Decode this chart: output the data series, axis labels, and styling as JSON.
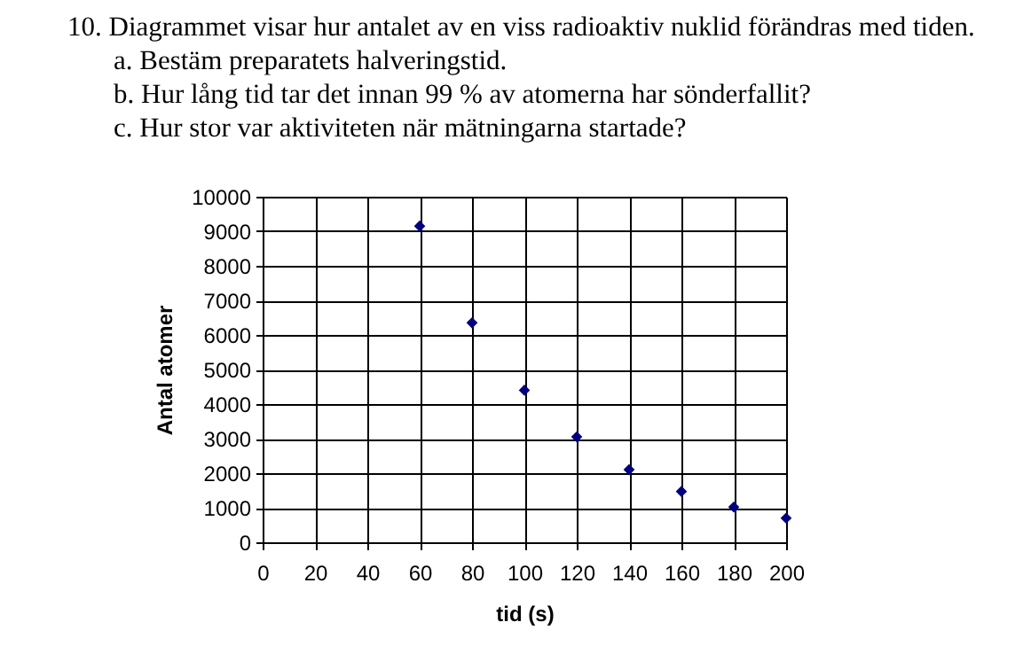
{
  "chart_data": {
    "type": "scatter",
    "title": "10. Diagrammet visar hur antalet av en viss radioaktiv nuklid förändras med tiden.",
    "annotations": [
      "a. Bestäm preparatets halveringstid.",
      "b. Hur lång tid tar det innan 99 % av atomerna har sönderfallit?",
      "c. Hur stor var aktiviteten när mätningarna startade?"
    ],
    "xlabel": "tid (s)",
    "ylabel": "Antal atomer",
    "x": [
      60,
      80,
      100,
      120,
      140,
      160,
      180,
      200
    ],
    "series": [
      {
        "color": "#000080",
        "values": [
          9150,
          6350,
          4400,
          3050,
          2100,
          1470,
          1020,
          700
        ]
      }
    ],
    "xlim": [
      0,
      200
    ],
    "xticks": [
      0,
      20,
      40,
      60,
      80,
      100,
      120,
      140,
      160,
      180,
      200
    ],
    "ylim": [
      0,
      10000
    ],
    "yticks": [
      0,
      1000,
      2000,
      3000,
      4000,
      5000,
      6000,
      7000,
      8000,
      9000,
      10000
    ],
    "grid": true,
    "marker": "diamond"
  }
}
